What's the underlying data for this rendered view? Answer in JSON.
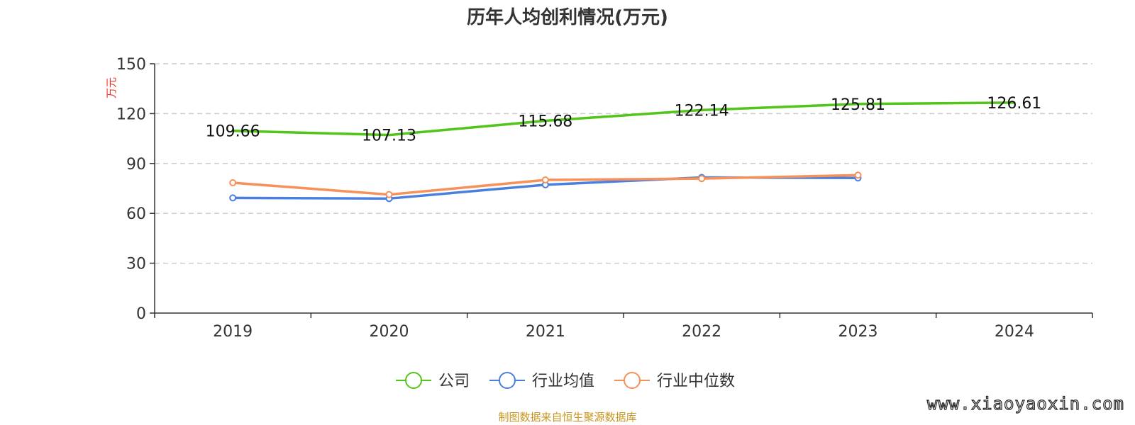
{
  "chart_data": {
    "type": "line",
    "title": "历年人均创利情况(万元)",
    "ylabel": "万元",
    "xlabel": "",
    "categories": [
      "2019",
      "2020",
      "2021",
      "2022",
      "2023",
      "2024"
    ],
    "ylim": [
      0,
      150
    ],
    "yticks": [
      0,
      30,
      60,
      90,
      120,
      150
    ],
    "grid": true,
    "legend_position": "bottom",
    "series": [
      {
        "name": "公司",
        "color": "#52c41a",
        "values": [
          109.66,
          107.13,
          115.68,
          122.14,
          125.81,
          126.61
        ],
        "labels": [
          "109.66",
          "107.13",
          "115.68",
          "122.14",
          "125.81",
          "126.61"
        ],
        "show_labels": true,
        "markers": false
      },
      {
        "name": "行业均值",
        "color": "#4a7fe0",
        "values": [
          69.3,
          68.9,
          77.2,
          81.6,
          81.3,
          null
        ],
        "show_labels": false,
        "markers": true
      },
      {
        "name": "行业中位数",
        "color": "#f79059",
        "values": [
          78.4,
          71.3,
          80.1,
          80.9,
          83.0,
          null
        ],
        "show_labels": false,
        "markers": true
      }
    ]
  },
  "source_text": "制图数据来自恒生聚源数据库",
  "watermark": "www.xiaoyaoxin.com",
  "colors": {
    "axis": "#333333",
    "grid": "#cccccc",
    "ylabel": "#e8362c",
    "source": "#c8941e"
  }
}
